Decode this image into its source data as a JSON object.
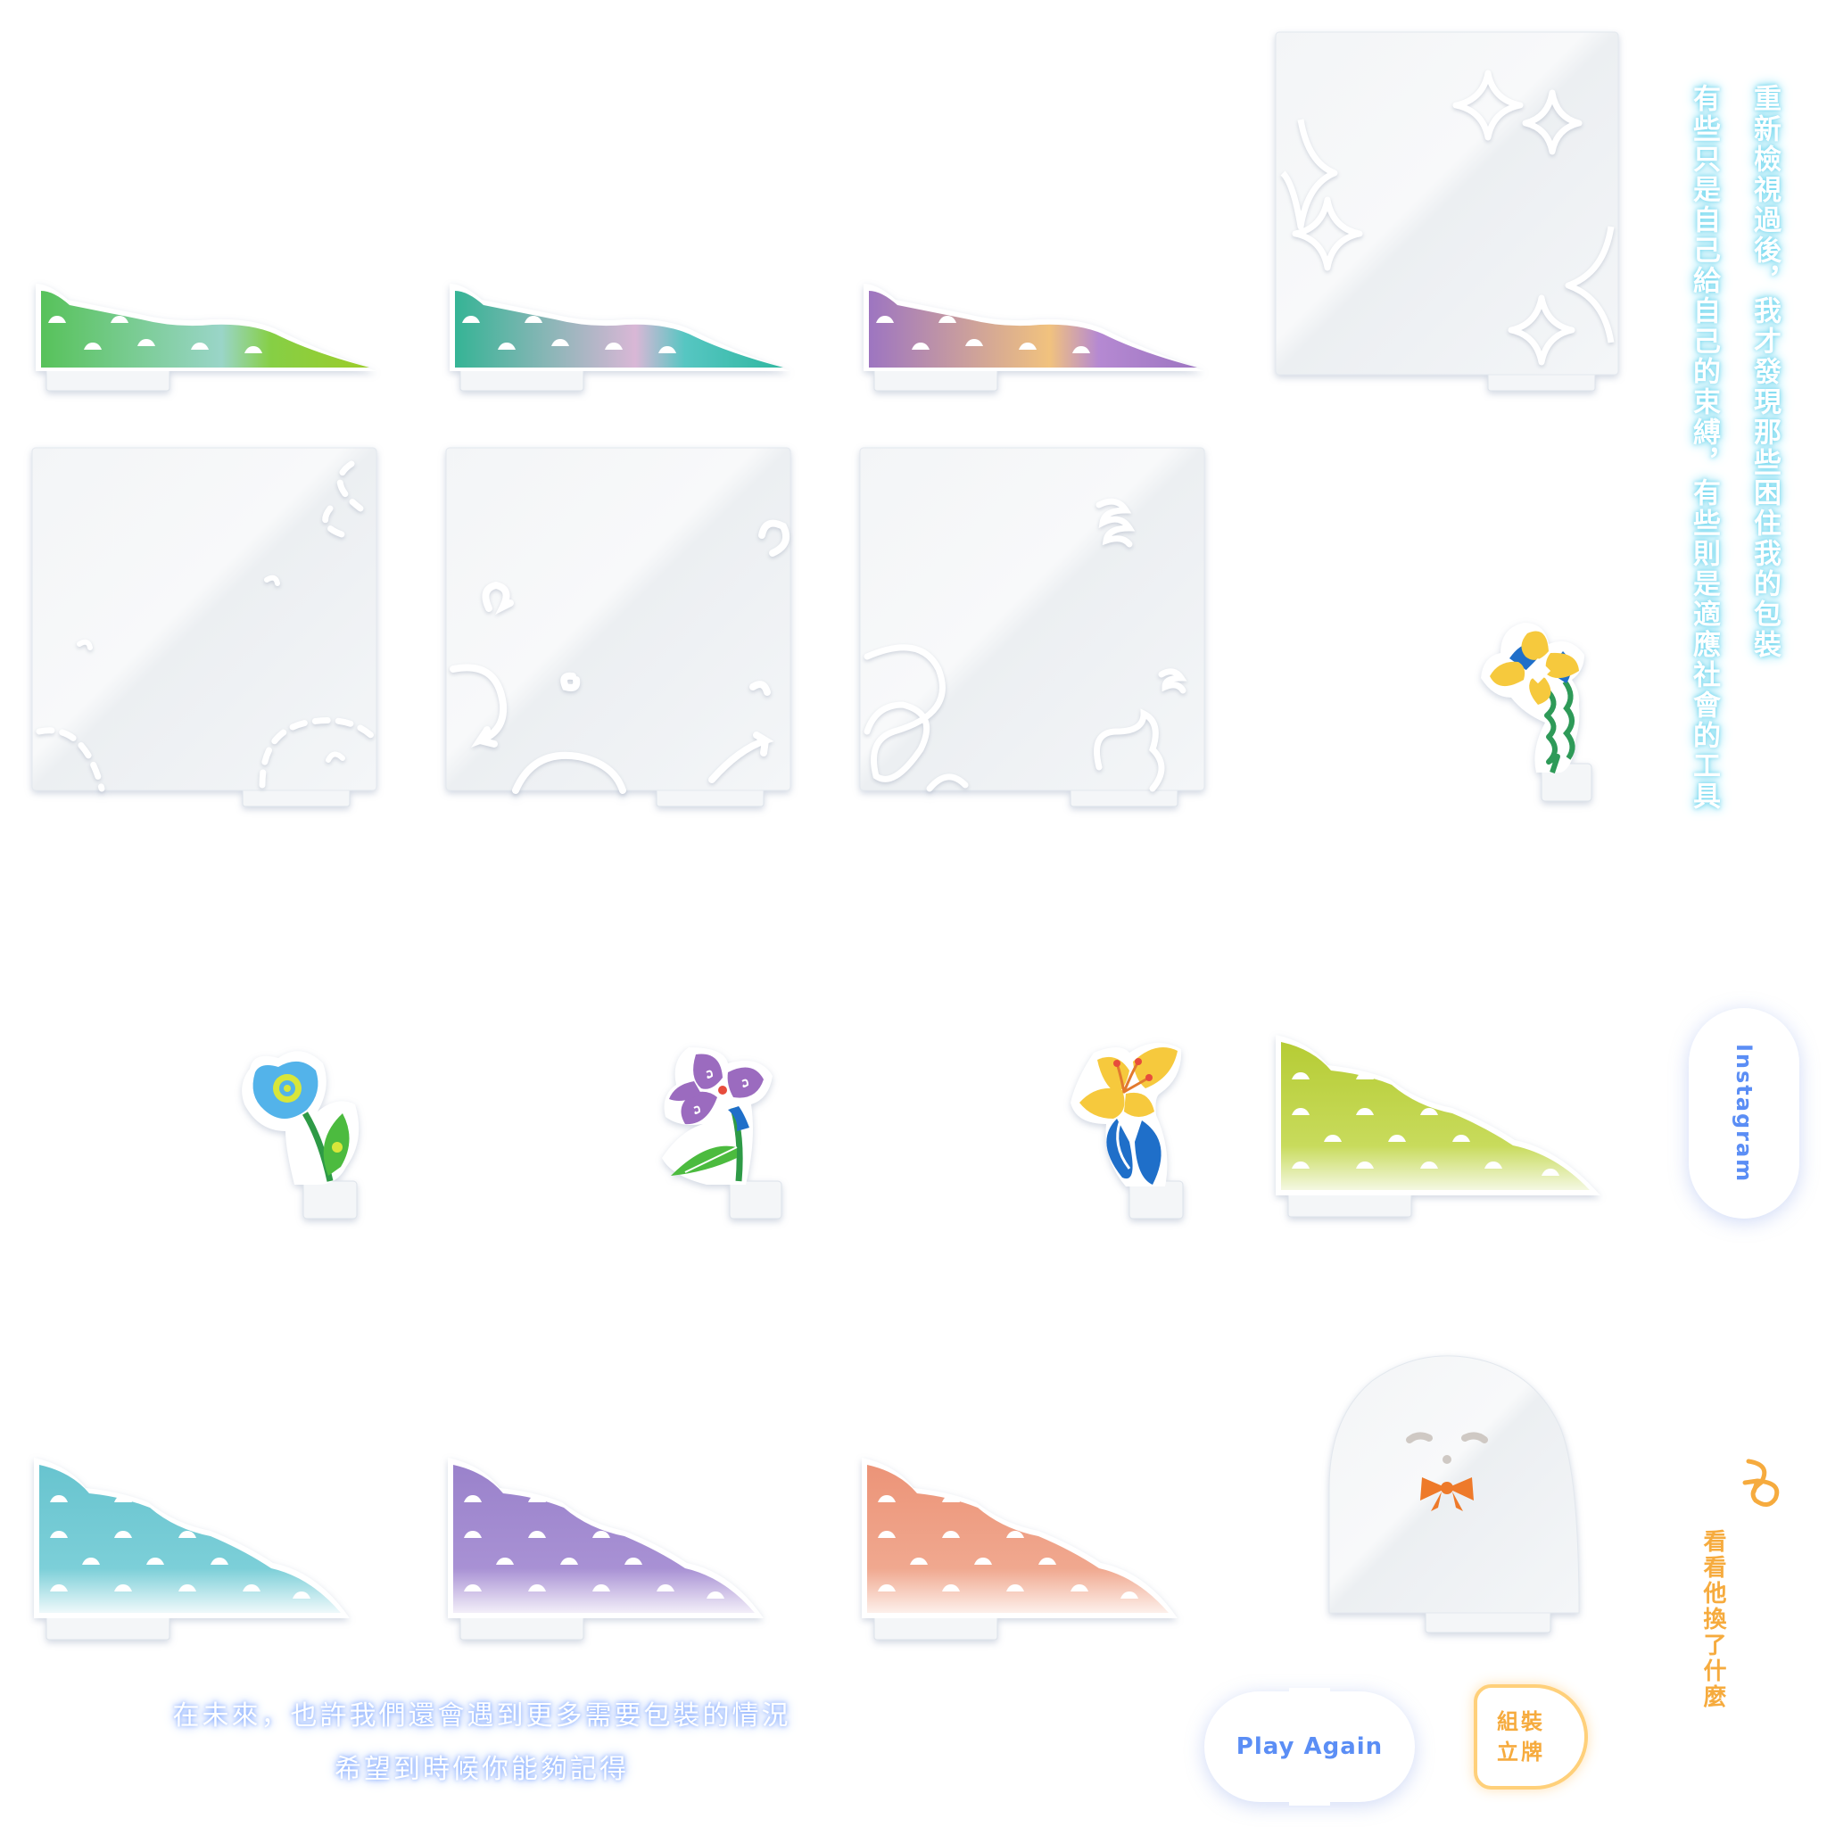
{
  "texts": {
    "vertical_line1": "重新檢視過後，我才發現那些困住我的包裝",
    "vertical_line2": "有些只是自己給自己的束縛，有些則是適應社會的工具",
    "bottom_line1": "在未來，也許我們還會遇到更多需要包裝的情況",
    "bottom_line2": "希望到時候你能夠記得",
    "hint": "看看他換了什麼"
  },
  "buttons": {
    "play_again": "Play Again",
    "instagram": "Instagram",
    "assemble_line1": "組裝",
    "assemble_line2": "立牌"
  },
  "pieces": [
    {
      "name": "hill-strip-green",
      "icon": "green-hill-strip"
    },
    {
      "name": "hill-strip-teal",
      "icon": "teal-hill-strip"
    },
    {
      "name": "hill-strip-purple",
      "icon": "purple-hill-strip"
    },
    {
      "name": "sparkle-panel",
      "icon": "sparkle-board"
    },
    {
      "name": "clear-panel-dots",
      "icon": "dotted-swirl-board"
    },
    {
      "name": "clear-panel-arrows",
      "icon": "arrow-swirl-board"
    },
    {
      "name": "clear-panel-scribble",
      "icon": "scribble-board"
    },
    {
      "name": "yellow-blue-flower",
      "icon": "yellow-flower-standee"
    },
    {
      "name": "blue-tulip",
      "icon": "blue-tulip-standee"
    },
    {
      "name": "purple-flower",
      "icon": "purple-flower-standee"
    },
    {
      "name": "yellow-lily",
      "icon": "yellow-lily-standee"
    },
    {
      "name": "big-hill-lime",
      "icon": "lime-hill"
    },
    {
      "name": "big-hill-cyan",
      "icon": "cyan-hill"
    },
    {
      "name": "big-hill-violet",
      "icon": "violet-hill"
    },
    {
      "name": "big-hill-salmon",
      "icon": "salmon-hill"
    },
    {
      "name": "ghost-character",
      "icon": "ghost-with-bowtie"
    }
  ],
  "colors": {
    "glow_blue": "#6fd6ee",
    "button_blue": "#5b8ef5",
    "accent_orange": "#f6ab3e",
    "hill_green": "#7cc63c",
    "hill_teal": "#45c3a8",
    "hill_purple": "#a77cc8",
    "hill_lime": "#b9cf3a",
    "hill_cyan": "#6ec8d2",
    "hill_violet": "#9b82cc",
    "hill_salmon": "#ee9a7d"
  }
}
